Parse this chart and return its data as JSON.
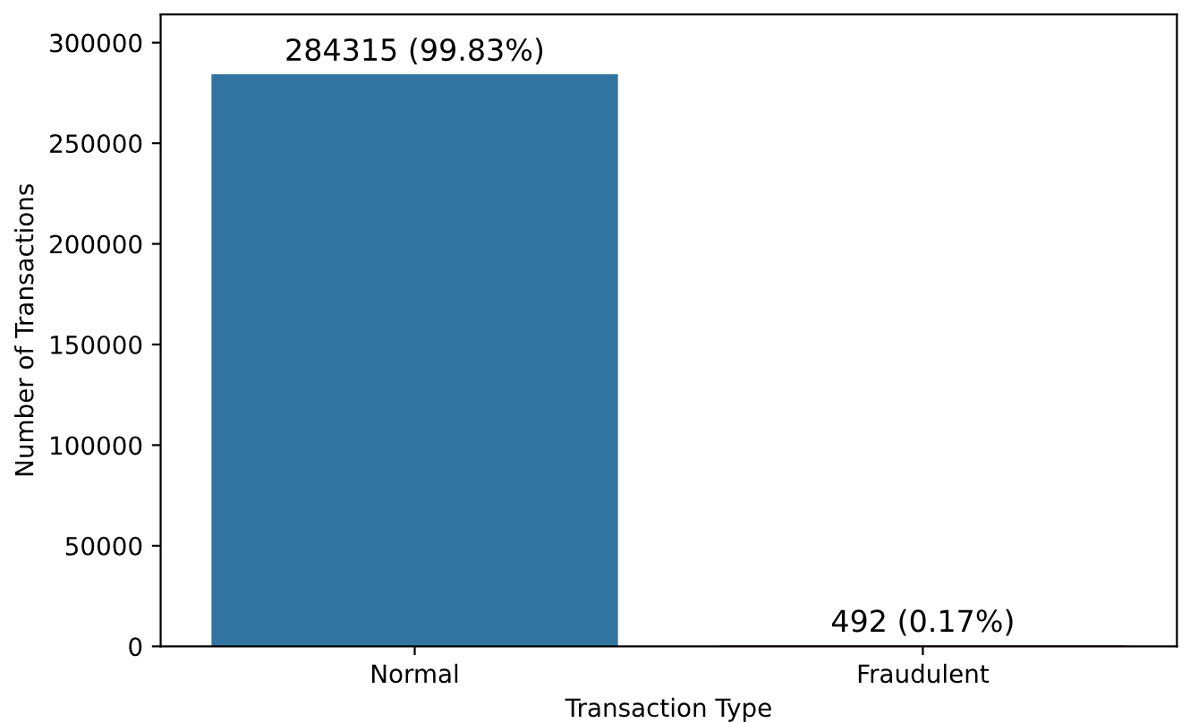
{
  "chart_data": {
    "type": "bar",
    "xlabel": "Transaction Type",
    "ylabel": "Number of Transactions",
    "categories": [
      "Normal",
      "Fraudulent"
    ],
    "values": [
      284315,
      492
    ],
    "colors": [
      "#3274a1",
      "#c03d3e"
    ],
    "value_labels": [
      "284315 (99.83%)",
      "492 (0.17%)"
    ],
    "ylim": [
      0,
      314000
    ],
    "yticks": [
      0,
      50000,
      100000,
      150000,
      200000,
      250000,
      300000
    ]
  }
}
